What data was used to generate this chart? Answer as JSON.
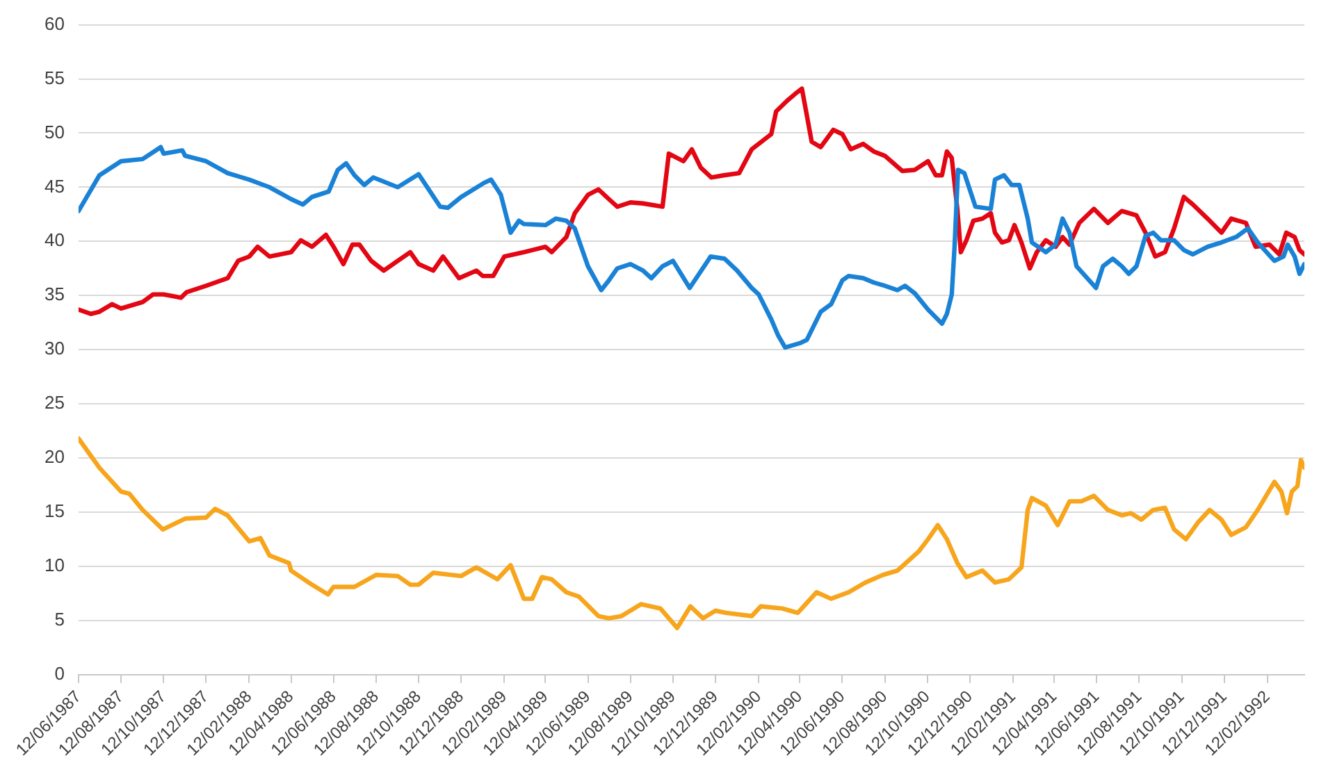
{
  "chart_data": {
    "type": "line",
    "xlim": [
      "1987-06-12",
      "1992-04-05"
    ],
    "ylim": [
      0,
      60
    ],
    "yticks": [
      0,
      5,
      10,
      15,
      20,
      25,
      30,
      35,
      40,
      45,
      50,
      55,
      60
    ],
    "xticks": [
      {
        "value": "1987-06-12",
        "label": "12/06/1987"
      },
      {
        "value": "1987-08-12",
        "label": "12/08/1987"
      },
      {
        "value": "1987-10-12",
        "label": "12/10/1987"
      },
      {
        "value": "1987-12-12",
        "label": "12/12/1987"
      },
      {
        "value": "1988-02-12",
        "label": "12/02/1988"
      },
      {
        "value": "1988-04-12",
        "label": "12/04/1988"
      },
      {
        "value": "1988-06-12",
        "label": "12/06/1988"
      },
      {
        "value": "1988-08-12",
        "label": "12/08/1988"
      },
      {
        "value": "1988-10-12",
        "label": "12/10/1988"
      },
      {
        "value": "1988-12-12",
        "label": "12/12/1988"
      },
      {
        "value": "1989-02-12",
        "label": "12/02/1989"
      },
      {
        "value": "1989-04-12",
        "label": "12/04/1989"
      },
      {
        "value": "1989-06-12",
        "label": "12/06/1989"
      },
      {
        "value": "1989-08-12",
        "label": "12/08/1989"
      },
      {
        "value": "1989-10-12",
        "label": "12/10/1989"
      },
      {
        "value": "1989-12-12",
        "label": "12/12/1989"
      },
      {
        "value": "1990-02-12",
        "label": "12/02/1990"
      },
      {
        "value": "1990-04-12",
        "label": "12/04/1990"
      },
      {
        "value": "1990-06-12",
        "label": "12/06/1990"
      },
      {
        "value": "1990-08-12",
        "label": "12/08/1990"
      },
      {
        "value": "1990-10-12",
        "label": "12/10/1990"
      },
      {
        "value": "1990-12-12",
        "label": "12/12/1990"
      },
      {
        "value": "1991-02-12",
        "label": "12/02/1991"
      },
      {
        "value": "1991-04-12",
        "label": "12/04/1991"
      },
      {
        "value": "1991-06-12",
        "label": "12/06/1991"
      },
      {
        "value": "1991-08-12",
        "label": "12/08/1991"
      },
      {
        "value": "1991-10-12",
        "label": "12/10/1991"
      },
      {
        "value": "1991-12-12",
        "label": "12/12/1991"
      },
      {
        "value": "1992-02-12",
        "label": "12/02/1992"
      }
    ],
    "grid": "y",
    "legend": false,
    "marker": "none",
    "line_style": "solid",
    "series": [
      {
        "color": "#1a82d6",
        "x": [
          "1987-06-12",
          "1987-07-12",
          "1987-08-12",
          "1987-09-12",
          "1987-10-08",
          "1987-10-12",
          "1987-11-08",
          "1987-11-12",
          "1987-12-12",
          "1988-01-12",
          "1988-02-12",
          "1988-03-12",
          "1988-04-12",
          "1988-04-29",
          "1988-05-12",
          "1988-06-05",
          "1988-06-18",
          "1988-06-30",
          "1988-07-12",
          "1988-07-26",
          "1988-08-08",
          "1988-09-12",
          "1988-10-12",
          "1988-11-12",
          "1988-11-23",
          "1988-12-12",
          "1989-01-14",
          "1989-01-24",
          "1989-02-07",
          "1989-02-21",
          "1989-03-05",
          "1989-03-12",
          "1989-04-12",
          "1989-04-27",
          "1989-05-12",
          "1989-05-24",
          "1989-06-12",
          "1989-07-01",
          "1989-07-12",
          "1989-07-24",
          "1989-08-12",
          "1989-08-30",
          "1989-09-11",
          "1989-09-27",
          "1989-10-12",
          "1989-11-05",
          "1989-12-05",
          "1989-12-25",
          "1990-01-12",
          "1990-02-02",
          "1990-02-12",
          "1990-03-02",
          "1990-03-12",
          "1990-03-22",
          "1990-04-12",
          "1990-04-22",
          "1990-05-12",
          "1990-05-27",
          "1990-06-12",
          "1990-06-21",
          "1990-07-12",
          "1990-07-27",
          "1990-08-12",
          "1990-08-30",
          "1990-09-10",
          "1990-09-24",
          "1990-10-13",
          "1990-11-02",
          "1990-11-09",
          "1990-11-16",
          "1990-11-20",
          "1990-11-25",
          "1990-12-04",
          "1990-12-20",
          "1991-01-11",
          "1991-01-17",
          "1991-01-30",
          "1991-02-10",
          "1991-02-21",
          "1991-03-05",
          "1991-03-11",
          "1991-03-31",
          "1991-04-14",
          "1991-04-24",
          "1991-05-04",
          "1991-05-14",
          "1991-06-11",
          "1991-06-21",
          "1991-07-05",
          "1991-07-18",
          "1991-07-28",
          "1991-08-08",
          "1991-08-21",
          "1991-09-01",
          "1991-09-12",
          "1991-10-01",
          "1991-10-15",
          "1991-10-28",
          "1991-11-18",
          "1991-12-08",
          "1991-12-29",
          "1992-01-15",
          "1992-01-29",
          "1992-02-22",
          "1992-03-06",
          "1992-03-12",
          "1992-03-22",
          "1992-03-29",
          "1992-04-05"
        ],
        "values": [
          42.8,
          46.1,
          47.4,
          47.6,
          48.7,
          48.1,
          48.4,
          47.9,
          47.4,
          46.3,
          45.7,
          45.0,
          43.9,
          43.4,
          44.1,
          44.6,
          46.6,
          47.2,
          46.1,
          45.2,
          45.9,
          45.0,
          46.2,
          43.2,
          43.1,
          44.1,
          45.4,
          45.7,
          44.3,
          40.8,
          41.9,
          41.6,
          41.5,
          42.1,
          41.9,
          41.2,
          37.7,
          35.5,
          36.4,
          37.5,
          37.9,
          37.3,
          36.6,
          37.7,
          38.2,
          35.7,
          38.6,
          38.4,
          37.3,
          35.7,
          35.1,
          32.8,
          31.3,
          30.2,
          30.6,
          30.9,
          33.5,
          34.2,
          36.4,
          36.8,
          36.6,
          36.2,
          35.9,
          35.5,
          35.9,
          35.2,
          33.7,
          32.4,
          33.3,
          35.1,
          39.5,
          46.6,
          46.3,
          43.2,
          43.0,
          45.7,
          46.1,
          45.2,
          45.2,
          42.1,
          39.9,
          39.0,
          39.7,
          42.1,
          40.8,
          37.7,
          35.7,
          37.7,
          38.4,
          37.7,
          37.0,
          37.7,
          40.5,
          40.8,
          40.1,
          40.1,
          39.2,
          38.8,
          39.5,
          39.9,
          40.4,
          41.2,
          39.9,
          38.2,
          38.6,
          39.7,
          38.6,
          37.0,
          37.9
        ]
      },
      {
        "color": "#e30613",
        "x": [
          "1987-06-12",
          "1987-06-30",
          "1987-07-12",
          "1987-07-30",
          "1987-08-12",
          "1987-09-12",
          "1987-09-27",
          "1987-10-12",
          "1987-11-06",
          "1987-11-14",
          "1987-12-12",
          "1988-01-12",
          "1988-01-27",
          "1988-02-12",
          "1988-02-24",
          "1988-03-12",
          "1988-04-12",
          "1988-04-26",
          "1988-05-12",
          "1988-06-01",
          "1988-06-12",
          "1988-06-26",
          "1988-07-09",
          "1988-07-19",
          "1988-08-05",
          "1988-08-23",
          "1988-09-12",
          "1988-09-30",
          "1988-10-12",
          "1988-11-02",
          "1988-11-16",
          "1988-12-09",
          "1989-01-03",
          "1989-01-12",
          "1989-01-27",
          "1989-02-12",
          "1989-03-12",
          "1989-04-12",
          "1989-04-21",
          "1989-05-12",
          "1989-05-24",
          "1989-06-12",
          "1989-06-27",
          "1989-07-12",
          "1989-07-24",
          "1989-08-12",
          "1989-08-30",
          "1989-09-27",
          "1989-10-06",
          "1989-10-27",
          "1989-11-08",
          "1989-11-21",
          "1989-12-06",
          "1989-12-24",
          "1990-01-15",
          "1990-02-02",
          "1990-02-12",
          "1990-03-02",
          "1990-03-09",
          "1990-03-25",
          "1990-04-05",
          "1990-04-15",
          "1990-04-29",
          "1990-05-12",
          "1990-05-30",
          "1990-06-12",
          "1990-06-24",
          "1990-07-12",
          "1990-07-27",
          "1990-08-12",
          "1990-09-06",
          "1990-09-24",
          "1990-10-13",
          "1990-10-24",
          "1990-11-02",
          "1990-11-09",
          "1990-11-16",
          "1990-11-24",
          "1990-11-29",
          "1990-12-07",
          "1990-12-17",
          "1990-12-30",
          "1991-01-11",
          "1991-01-17",
          "1991-01-27",
          "1991-02-06",
          "1991-02-14",
          "1991-02-24",
          "1991-03-08",
          "1991-03-18",
          "1991-03-31",
          "1991-04-14",
          "1991-04-24",
          "1991-05-04",
          "1991-05-18",
          "1991-06-08",
          "1991-06-28",
          "1991-07-18",
          "1991-08-08",
          "1991-08-21",
          "1991-09-04",
          "1991-09-18",
          "1991-10-01",
          "1991-10-15",
          "1991-10-28",
          "1991-11-18",
          "1991-12-08",
          "1991-12-22",
          "1992-01-12",
          "1992-01-26",
          "1992-02-15",
          "1992-02-29",
          "1992-03-10",
          "1992-03-22",
          "1992-03-29",
          "1992-04-05"
        ],
        "values": [
          33.7,
          33.3,
          33.5,
          34.2,
          33.8,
          34.4,
          35.1,
          35.1,
          34.8,
          35.3,
          35.9,
          36.6,
          38.2,
          38.6,
          39.5,
          38.6,
          39.0,
          40.1,
          39.5,
          40.6,
          39.5,
          37.9,
          39.7,
          39.7,
          38.2,
          37.3,
          38.2,
          39.0,
          37.9,
          37.3,
          38.6,
          36.6,
          37.3,
          36.8,
          36.8,
          38.6,
          39.0,
          39.5,
          39.0,
          40.4,
          42.6,
          44.3,
          44.8,
          43.9,
          43.2,
          43.6,
          43.5,
          43.2,
          48.1,
          47.4,
          48.5,
          46.8,
          45.9,
          46.1,
          46.3,
          48.5,
          49.0,
          49.9,
          52.0,
          53.0,
          53.6,
          54.1,
          49.2,
          48.7,
          50.3,
          49.9,
          48.5,
          49.0,
          48.3,
          47.9,
          46.5,
          46.6,
          47.4,
          46.1,
          46.1,
          48.3,
          47.7,
          43.0,
          39.0,
          40.1,
          41.9,
          42.1,
          42.6,
          40.8,
          39.9,
          40.1,
          41.5,
          39.9,
          37.5,
          39.0,
          40.1,
          39.5,
          40.4,
          39.7,
          41.7,
          43.0,
          41.7,
          42.8,
          42.4,
          40.8,
          38.6,
          39.0,
          41.2,
          44.1,
          43.4,
          42.1,
          40.8,
          42.1,
          41.7,
          39.5,
          39.7,
          38.8,
          40.8,
          40.4,
          39.2,
          38.8
        ]
      },
      {
        "color": "#f7a51c",
        "x": [
          "1987-06-12",
          "1987-07-12",
          "1987-08-12",
          "1987-08-24",
          "1987-09-12",
          "1987-10-11",
          "1987-11-12",
          "1987-12-12",
          "1987-12-25",
          "1988-01-12",
          "1988-02-12",
          "1988-02-28",
          "1988-03-12",
          "1988-04-09",
          "1988-04-12",
          "1988-05-12",
          "1988-06-04",
          "1988-06-12",
          "1988-07-12",
          "1988-08-12",
          "1988-09-12",
          "1988-09-30",
          "1988-10-12",
          "1988-11-02",
          "1988-12-12",
          "1989-01-03",
          "1989-02-02",
          "1989-02-21",
          "1989-03-12",
          "1989-03-24",
          "1989-04-07",
          "1989-04-21",
          "1989-05-12",
          "1989-05-30",
          "1989-06-27",
          "1989-07-12",
          "1989-07-30",
          "1989-08-27",
          "1989-09-24",
          "1989-10-18",
          "1989-11-06",
          "1989-11-24",
          "1989-12-12",
          "1989-12-27",
          "1990-02-02",
          "1990-02-15",
          "1990-03-18",
          "1990-04-09",
          "1990-05-06",
          "1990-05-27",
          "1990-06-21",
          "1990-07-15",
          "1990-08-09",
          "1990-08-30",
          "1990-09-30",
          "1990-10-13",
          "1990-10-27",
          "1990-11-09",
          "1990-11-24",
          "1990-12-07",
          "1990-12-30",
          "1991-01-17",
          "1991-02-06",
          "1991-02-24",
          "1991-03-05",
          "1991-03-11",
          "1991-03-31",
          "1991-04-17",
          "1991-05-04",
          "1991-05-21",
          "1991-06-08",
          "1991-06-28",
          "1991-07-18",
          "1991-07-31",
          "1991-08-15",
          "1991-09-01",
          "1991-09-18",
          "1991-10-01",
          "1991-10-18",
          "1991-11-05",
          "1991-11-21",
          "1991-12-08",
          "1991-12-22",
          "1992-01-12",
          "1992-01-29",
          "1992-02-22",
          "1992-03-03",
          "1992-03-11",
          "1992-03-18",
          "1992-03-26",
          "1992-03-31",
          "1992-04-05"
        ],
        "values": [
          21.8,
          19.1,
          16.9,
          16.7,
          15.2,
          13.4,
          14.4,
          14.5,
          15.3,
          14.7,
          12.3,
          12.6,
          11.0,
          10.3,
          9.6,
          8.3,
          7.4,
          8.1,
          8.1,
          9.2,
          9.1,
          8.3,
          8.3,
          9.4,
          9.1,
          9.9,
          8.8,
          10.1,
          7.0,
          7.0,
          9.0,
          8.8,
          7.6,
          7.2,
          5.4,
          5.2,
          5.4,
          6.5,
          6.1,
          4.3,
          6.3,
          5.2,
          5.9,
          5.7,
          5.4,
          6.3,
          6.1,
          5.7,
          7.6,
          7.0,
          7.6,
          8.5,
          9.2,
          9.6,
          11.4,
          12.5,
          13.8,
          12.5,
          10.3,
          9.0,
          9.6,
          8.5,
          8.8,
          9.9,
          15.2,
          16.3,
          15.6,
          13.8,
          16.0,
          16.0,
          16.5,
          15.2,
          14.7,
          14.9,
          14.3,
          15.2,
          15.4,
          13.4,
          12.5,
          14.1,
          15.2,
          14.3,
          12.9,
          13.6,
          15.2,
          17.8,
          16.9,
          14.9,
          16.9,
          17.4,
          19.8,
          19.1
        ]
      }
    ]
  }
}
